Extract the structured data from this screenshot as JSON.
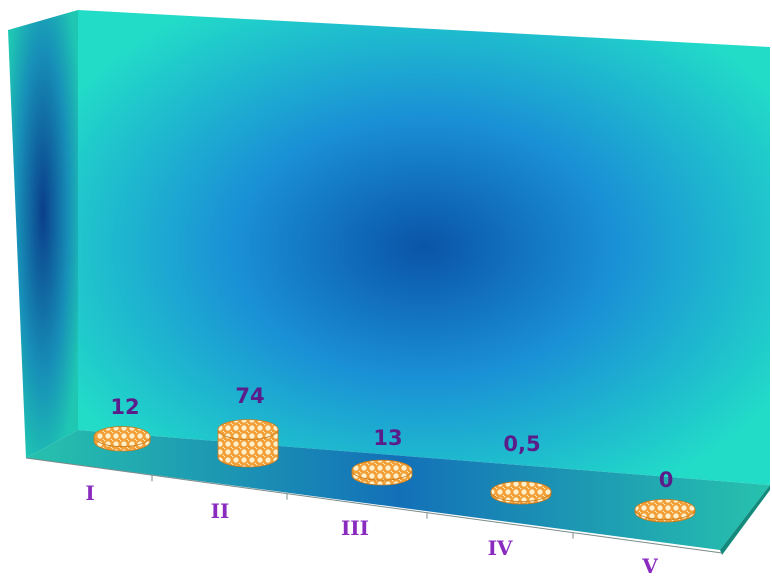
{
  "chart_data": {
    "type": "bar",
    "title": "",
    "xlabel": "",
    "ylabel": "",
    "categories": [
      "I",
      "II",
      "III",
      "IV",
      "V"
    ],
    "values": [
      12,
      74,
      13,
      0.5,
      0
    ],
    "value_labels": [
      "12",
      "74",
      "13",
      "0,5",
      "0"
    ],
    "style": "3d-cylinder",
    "grid": false,
    "legend": "none",
    "colors": {
      "wall_light": "#22d3c4",
      "wall_dark": "#0a4f9a",
      "floor": "#1fa99a",
      "bar_fill": "#f2a33a",
      "bar_pattern": "#fff3d6",
      "value_text": "#5b1d8a",
      "category_text": "#8a2bc0"
    }
  }
}
